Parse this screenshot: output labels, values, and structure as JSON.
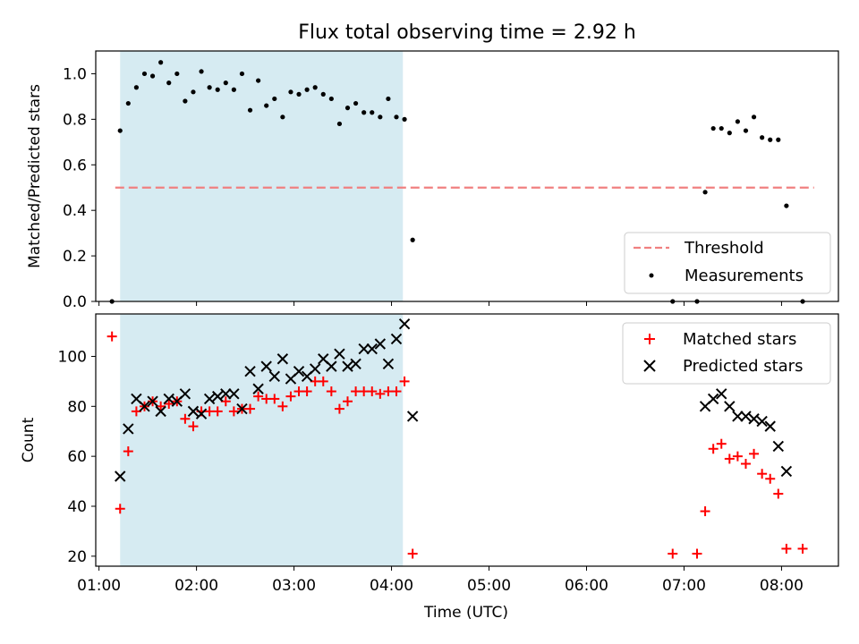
{
  "chart_data": [
    {
      "type": "scatter",
      "title": "Flux total observing time = 2.92 h",
      "xlabel": "",
      "ylabel": "Matched/Predicted stars",
      "xlim": [
        "00:58",
        "08:35"
      ],
      "ylim": [
        0.0,
        1.1
      ],
      "x_ticks": [
        "01:00",
        "02:00",
        "03:00",
        "04:00",
        "05:00",
        "06:00",
        "07:00",
        "08:00"
      ],
      "y_ticks": [
        "0.0",
        "0.2",
        "0.4",
        "0.6",
        "0.8",
        "1.0"
      ],
      "shaded_region": {
        "x_start": "01:13",
        "x_end": "04:07",
        "color": "#add8e6"
      },
      "threshold": {
        "name": "Threshold",
        "value": 0.5,
        "x_start": "01:10",
        "x_end": "08:20",
        "color": "#f08080"
      },
      "legend_position": "lower right",
      "series": [
        {
          "name": "Measurements",
          "marker": "dot",
          "color": "#000000",
          "points": [
            [
              "01:08",
              0.0
            ],
            [
              "01:13",
              0.75
            ],
            [
              "01:18",
              0.87
            ],
            [
              "01:23",
              0.94
            ],
            [
              "01:28",
              1.0
            ],
            [
              "01:33",
              0.99
            ],
            [
              "01:38",
              1.05
            ],
            [
              "01:43",
              0.96
            ],
            [
              "01:48",
              1.0
            ],
            [
              "01:53",
              0.88
            ],
            [
              "01:58",
              0.92
            ],
            [
              "02:03",
              1.01
            ],
            [
              "02:08",
              0.94
            ],
            [
              "02:13",
              0.93
            ],
            [
              "02:18",
              0.96
            ],
            [
              "02:23",
              0.93
            ],
            [
              "02:28",
              1.0
            ],
            [
              "02:33",
              0.84
            ],
            [
              "02:38",
              0.97
            ],
            [
              "02:43",
              0.86
            ],
            [
              "02:48",
              0.89
            ],
            [
              "02:53",
              0.81
            ],
            [
              "02:58",
              0.92
            ],
            [
              "03:03",
              0.91
            ],
            [
              "03:08",
              0.93
            ],
            [
              "03:13",
              0.94
            ],
            [
              "03:18",
              0.91
            ],
            [
              "03:23",
              0.89
            ],
            [
              "03:28",
              0.78
            ],
            [
              "03:33",
              0.85
            ],
            [
              "03:38",
              0.87
            ],
            [
              "03:43",
              0.83
            ],
            [
              "03:48",
              0.83
            ],
            [
              "03:53",
              0.81
            ],
            [
              "03:58",
              0.89
            ],
            [
              "04:03",
              0.81
            ],
            [
              "04:08",
              0.8
            ],
            [
              "04:13",
              0.27
            ],
            [
              "06:53",
              0.0
            ],
            [
              "07:08",
              0.0
            ],
            [
              "07:13",
              0.48
            ],
            [
              "07:18",
              0.76
            ],
            [
              "07:23",
              0.76
            ],
            [
              "07:28",
              0.74
            ],
            [
              "07:33",
              0.79
            ],
            [
              "07:38",
              0.75
            ],
            [
              "07:43",
              0.81
            ],
            [
              "07:48",
              0.72
            ],
            [
              "07:53",
              0.71
            ],
            [
              "07:58",
              0.71
            ],
            [
              "08:03",
              0.42
            ],
            [
              "08:13",
              0.0
            ]
          ]
        }
      ]
    },
    {
      "type": "scatter",
      "title": "",
      "xlabel": "Time (UTC)",
      "ylabel": "Count",
      "xlim": [
        "00:58",
        "08:35"
      ],
      "ylim": [
        16,
        117
      ],
      "x_ticks": [
        "01:00",
        "02:00",
        "03:00",
        "04:00",
        "05:00",
        "06:00",
        "07:00",
        "08:00"
      ],
      "y_ticks": [
        "20",
        "40",
        "60",
        "80",
        "100"
      ],
      "shaded_region": {
        "x_start": "01:13",
        "x_end": "04:07",
        "color": "#add8e6"
      },
      "legend_position": "upper right",
      "series": [
        {
          "name": "Matched stars",
          "marker": "plus",
          "color": "#ff0000",
          "points": [
            [
              "01:08",
              108
            ],
            [
              "01:13",
              39
            ],
            [
              "01:18",
              62
            ],
            [
              "01:23",
              78
            ],
            [
              "01:28",
              80
            ],
            [
              "01:33",
              82
            ],
            [
              "01:38",
              80
            ],
            [
              "01:43",
              81
            ],
            [
              "01:48",
              82
            ],
            [
              "01:53",
              75
            ],
            [
              "01:58",
              72
            ],
            [
              "02:03",
              78
            ],
            [
              "02:08",
              78
            ],
            [
              "02:13",
              78
            ],
            [
              "02:18",
              82
            ],
            [
              "02:23",
              78
            ],
            [
              "02:28",
              79
            ],
            [
              "02:33",
              79
            ],
            [
              "02:38",
              84
            ],
            [
              "02:43",
              83
            ],
            [
              "02:48",
              83
            ],
            [
              "02:53",
              80
            ],
            [
              "02:58",
              84
            ],
            [
              "03:03",
              86
            ],
            [
              "03:08",
              86
            ],
            [
              "03:13",
              90
            ],
            [
              "03:18",
              90
            ],
            [
              "03:23",
              86
            ],
            [
              "03:28",
              79
            ],
            [
              "03:33",
              82
            ],
            [
              "03:38",
              86
            ],
            [
              "03:43",
              86
            ],
            [
              "03:48",
              86
            ],
            [
              "03:53",
              85
            ],
            [
              "03:58",
              86
            ],
            [
              "04:03",
              86
            ],
            [
              "04:08",
              90
            ],
            [
              "04:13",
              21
            ],
            [
              "06:53",
              21
            ],
            [
              "07:08",
              21
            ],
            [
              "07:13",
              38
            ],
            [
              "07:18",
              63
            ],
            [
              "07:23",
              65
            ],
            [
              "07:28",
              59
            ],
            [
              "07:33",
              60
            ],
            [
              "07:38",
              57
            ],
            [
              "07:43",
              61
            ],
            [
              "07:48",
              53
            ],
            [
              "07:53",
              51
            ],
            [
              "07:58",
              45
            ],
            [
              "08:03",
              23
            ],
            [
              "08:13",
              23
            ]
          ]
        },
        {
          "name": "Predicted stars",
          "marker": "x",
          "color": "#000000",
          "points": [
            [
              "01:13",
              52
            ],
            [
              "01:18",
              71
            ],
            [
              "01:23",
              83
            ],
            [
              "01:28",
              80
            ],
            [
              "01:33",
              82
            ],
            [
              "01:38",
              78
            ],
            [
              "01:43",
              83
            ],
            [
              "01:48",
              82
            ],
            [
              "01:53",
              85
            ],
            [
              "01:58",
              78
            ],
            [
              "02:03",
              77
            ],
            [
              "02:08",
              83
            ],
            [
              "02:13",
              84
            ],
            [
              "02:18",
              85
            ],
            [
              "02:23",
              85
            ],
            [
              "02:28",
              79
            ],
            [
              "02:33",
              94
            ],
            [
              "02:38",
              87
            ],
            [
              "02:43",
              96
            ],
            [
              "02:48",
              92
            ],
            [
              "02:53",
              99
            ],
            [
              "02:58",
              91
            ],
            [
              "03:03",
              94
            ],
            [
              "03:08",
              92
            ],
            [
              "03:13",
              95
            ],
            [
              "03:18",
              99
            ],
            [
              "03:23",
              96
            ],
            [
              "03:28",
              101
            ],
            [
              "03:33",
              96
            ],
            [
              "03:38",
              97
            ],
            [
              "03:43",
              103
            ],
            [
              "03:48",
              103
            ],
            [
              "03:53",
              105
            ],
            [
              "03:58",
              97
            ],
            [
              "04:03",
              107
            ],
            [
              "04:08",
              113
            ],
            [
              "04:13",
              76
            ],
            [
              "07:13",
              80
            ],
            [
              "07:18",
              83
            ],
            [
              "07:23",
              85
            ],
            [
              "07:28",
              80
            ],
            [
              "07:33",
              76
            ],
            [
              "07:38",
              76
            ],
            [
              "07:43",
              75
            ],
            [
              "07:48",
              74
            ],
            [
              "07:53",
              72
            ],
            [
              "07:58",
              64
            ],
            [
              "08:03",
              54
            ]
          ]
        }
      ]
    }
  ]
}
